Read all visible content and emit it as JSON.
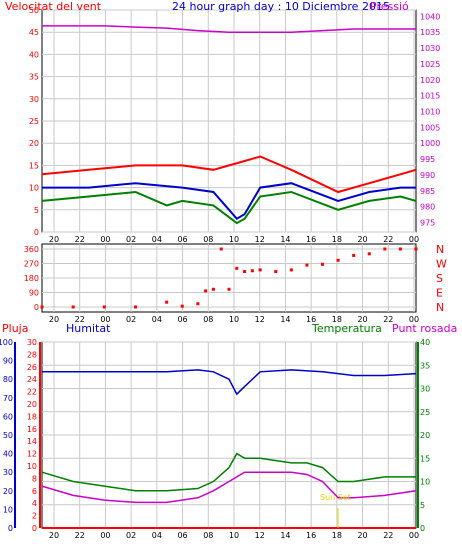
{
  "header": {
    "title": "24 hour graph day : 10 Diciembre 2015",
    "left_label": "Velocitat del vent",
    "right_label": "Pressió"
  },
  "chart_data": [
    {
      "type": "line",
      "name": "wind-pressure",
      "x_tick_labels": [
        "20",
        "22",
        "00",
        "02",
        "04",
        "06",
        "08",
        "10",
        "12",
        "14",
        "16",
        "18",
        "20",
        "22",
        "00"
      ],
      "y_left_ticks": [
        "50",
        "45",
        "40",
        "35",
        "30",
        "25",
        "20",
        "15",
        "10",
        "5",
        "0"
      ],
      "y_right_ticks": [
        "1040",
        "1035",
        "1030",
        "1025",
        "1020",
        "1015",
        "1010",
        "1005",
        "1000",
        "995",
        "990",
        "985",
        "980",
        "975"
      ],
      "ylim_left": [
        0,
        50
      ],
      "ylim_right": [
        972,
        1042
      ],
      "series": [
        {
          "color": "#ff0000",
          "x": [
            0,
            3,
            6,
            9,
            11,
            13,
            14,
            16,
            19,
            21,
            23,
            24
          ],
          "y": [
            13,
            14,
            15,
            15,
            14,
            16,
            17,
            14,
            9,
            11,
            13,
            14
          ]
        },
        {
          "color": "#0000cc",
          "x": [
            0,
            3,
            6,
            9,
            11,
            12.5,
            13,
            14,
            16,
            19,
            21,
            23,
            24
          ],
          "y": [
            10,
            10,
            11,
            10,
            9,
            3,
            4,
            10,
            11,
            7,
            9,
            10,
            10
          ]
        },
        {
          "color": "#008000",
          "x": [
            0,
            3,
            6,
            8,
            9,
            11,
            12.5,
            13,
            14,
            16,
            19,
            21,
            23,
            24
          ],
          "y": [
            7,
            8,
            9,
            6,
            7,
            6,
            2,
            3,
            8,
            9,
            5,
            7,
            8,
            7
          ]
        },
        {
          "color": "#cc00cc",
          "axis": "right",
          "x": [
            0,
            2,
            4,
            6,
            8,
            10,
            12,
            14,
            16,
            18,
            20,
            22,
            24
          ],
          "y": [
            1037,
            1037,
            1037,
            1036.6,
            1036.3,
            1035.5,
            1035,
            1035,
            1035,
            1035.5,
            1036,
            1036,
            1036
          ]
        }
      ]
    },
    {
      "type": "scatter",
      "name": "wind-direction",
      "x_tick_labels": [
        "20",
        "22",
        "00",
        "02",
        "04",
        "06",
        "08",
        "10",
        "12",
        "14",
        "16",
        "18",
        "20",
        "22",
        "00"
      ],
      "y_left_ticks": [
        "360",
        "270",
        "180",
        "90",
        "0"
      ],
      "y_right_ticks": [
        "N",
        "W",
        "S",
        "E",
        "N"
      ],
      "ylim": [
        0,
        360
      ],
      "color": "#ff0000",
      "x": [
        0,
        2,
        4,
        6,
        8,
        9,
        10,
        10.5,
        11,
        11.5,
        12,
        12.5,
        13,
        13.5,
        14,
        15,
        16,
        17,
        18,
        19,
        20,
        21,
        22,
        23,
        24
      ],
      "y": [
        0,
        0,
        0,
        0,
        30,
        5,
        20,
        100,
        110,
        360,
        110,
        240,
        220,
        225,
        230,
        220,
        230,
        260,
        265,
        290,
        320,
        330,
        360,
        360,
        360
      ]
    },
    {
      "type": "line",
      "name": "humidity-temperature",
      "labels": {
        "left_red": "Pluja",
        "left_blue": "Humitat",
        "right_green": "Temperatura",
        "right_magenta": "Punt rosada"
      },
      "annotation": "Sun Set",
      "x_tick_labels": [
        "20",
        "22",
        "00",
        "02",
        "04",
        "06",
        "08",
        "10",
        "12",
        "14",
        "16",
        "18",
        "20",
        "22",
        "00"
      ],
      "y_humidity_ticks": [
        "100",
        "90",
        "80",
        "70",
        "60",
        "50",
        "40",
        "30",
        "20",
        "10",
        "0"
      ],
      "y_rain_ticks": [
        "30",
        "28",
        "26",
        "24",
        "22",
        "20",
        "18",
        "16",
        "14",
        "12",
        "10",
        "8",
        "6",
        "4",
        "2",
        "0"
      ],
      "y_temp_ticks": [
        "40",
        "35",
        "30",
        "25",
        "20",
        "15",
        "10",
        "5",
        "0"
      ],
      "ylim_humidity": [
        0,
        100
      ],
      "ylim_temp": [
        0,
        40
      ],
      "series": [
        {
          "color": "#0000cc",
          "axis": "humidity",
          "x": [
            0,
            4,
            8,
            10,
            11,
            12,
            12.5,
            13,
            14,
            16,
            18,
            20,
            22,
            24
          ],
          "y": [
            84,
            84,
            84,
            85,
            84,
            80,
            72,
            76,
            84,
            85,
            84,
            82,
            82,
            83
          ]
        },
        {
          "color": "#008000",
          "axis": "temp",
          "x": [
            0,
            2,
            4,
            6,
            8,
            10,
            11,
            12,
            12.5,
            13,
            14,
            16,
            17,
            18,
            19,
            20,
            22,
            24
          ],
          "y": [
            12,
            10,
            9,
            8,
            8,
            8.5,
            10,
            13,
            16,
            15,
            15,
            14,
            14,
            13,
            10,
            10,
            11,
            11
          ]
        },
        {
          "color": "#cc00cc",
          "axis": "temp",
          "x": [
            0,
            2,
            4,
            6,
            8,
            10,
            11,
            12,
            13,
            14,
            16,
            17,
            18,
            19,
            20,
            22,
            24
          ],
          "y": [
            9,
            7,
            6,
            5.5,
            5.5,
            6.5,
            8,
            10,
            12,
            12,
            12,
            11.5,
            10,
            6.5,
            6.5,
            7,
            8
          ]
        },
        {
          "color": "#ff0000",
          "axis": "rain",
          "x": [
            0,
            24
          ],
          "y": [
            0,
            0
          ]
        }
      ]
    }
  ]
}
